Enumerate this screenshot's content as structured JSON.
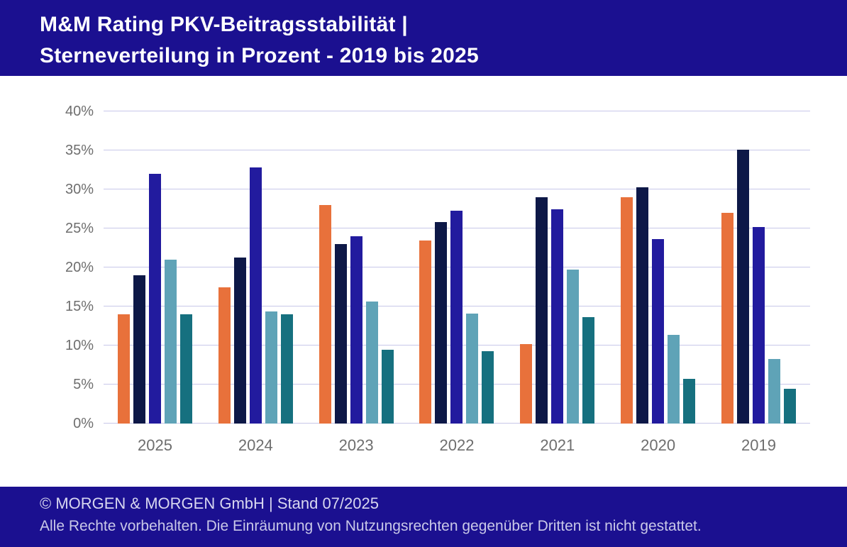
{
  "header": {
    "title_line1": "M&M Rating PKV-Beitragsstabilität |",
    "title_line2": "Sterneverteilung in Prozent - 2019 bis 2025"
  },
  "footer": {
    "line1": "© MORGEN & MORGEN GmbH | Stand 07/2025",
    "line2": "Alle Rechte vorbehalten. Die Einräumung von Nutzungsrechten gegenüber Dritten ist nicht gestattet."
  },
  "colors": {
    "header_bg": "#1B1090",
    "footer_bg": "#1B1090",
    "grid_line": "#C8C7E9",
    "axis_text": "#6E6E6E",
    "title_text": "#FFFFFF"
  },
  "chart_data": {
    "type": "bar",
    "title": "M&M Rating PKV-Beitragsstabilität | Sterneverteilung in Prozent - 2019 bis 2025",
    "categories": [
      "2025",
      "2024",
      "2023",
      "2022",
      "2021",
      "2020",
      "2019"
    ],
    "series": [
      {
        "name": "orange",
        "color": "#E8713B",
        "values": [
          14.0,
          17.5,
          28.0,
          23.5,
          10.2,
          29.0,
          27.0
        ]
      },
      {
        "name": "dark-navy",
        "color": "#0D1847",
        "values": [
          19.0,
          21.3,
          23.0,
          25.8,
          29.0,
          30.3,
          35.1
        ]
      },
      {
        "name": "royal-blue",
        "color": "#221B9E",
        "values": [
          32.0,
          32.8,
          24.0,
          27.3,
          27.5,
          23.6,
          25.2
        ]
      },
      {
        "name": "light-teal",
        "color": "#5FA3B7",
        "values": [
          21.0,
          14.4,
          15.6,
          14.1,
          19.7,
          11.4,
          8.3
        ]
      },
      {
        "name": "dark-teal",
        "color": "#16707F",
        "values": [
          14.0,
          14.0,
          9.5,
          9.3,
          13.6,
          5.7,
          4.5
        ]
      }
    ],
    "xlabel": "",
    "ylabel": "",
    "ylim": [
      0,
      40
    ],
    "ytick_step": 5,
    "yticks": [
      "0%",
      "5%",
      "10%",
      "15%",
      "20%",
      "25%",
      "30%",
      "35%",
      "40%"
    ],
    "grid": true,
    "legend_position": "none"
  }
}
